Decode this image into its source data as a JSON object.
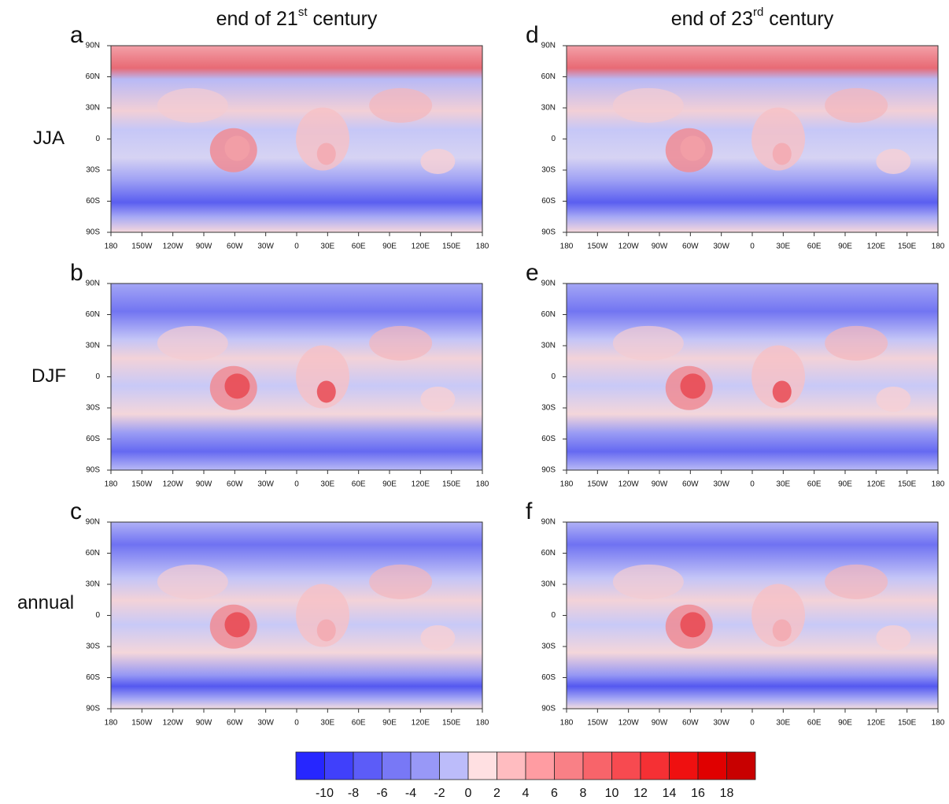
{
  "columns": [
    {
      "title": "end of 21",
      "sup": "st",
      "suffix": " century"
    },
    {
      "title": "end of 23",
      "sup": "rd",
      "suffix": " century"
    }
  ],
  "panels": [
    "a",
    "b",
    "c",
    "d",
    "e",
    "f"
  ],
  "rows": [
    "JJA",
    "DJF",
    "annual"
  ],
  "lat_ticks": [
    "90N",
    "60N",
    "30N",
    "0",
    "30S",
    "60S",
    "90S"
  ],
  "lon_ticks": [
    "180",
    "150W",
    "120W",
    "90W",
    "60W",
    "30W",
    "0",
    "30E",
    "60E",
    "90E",
    "120E",
    "150E",
    "180"
  ],
  "colorbar": {
    "colors": [
      "#2626ff",
      "#4040fb",
      "#5c5cf8",
      "#7878f6",
      "#9898f7",
      "#bcbcfa",
      "#ffe0e2",
      "#ffbcc0",
      "#ff9ca2",
      "#f98086",
      "#f8646a",
      "#f74a50",
      "#f53034",
      "#ef1010",
      "#e00000",
      "#c80000"
    ],
    "labels": [
      -10,
      -8,
      -6,
      -4,
      -2,
      0,
      2,
      4,
      6,
      8,
      10,
      12,
      14,
      16,
      18
    ]
  }
}
